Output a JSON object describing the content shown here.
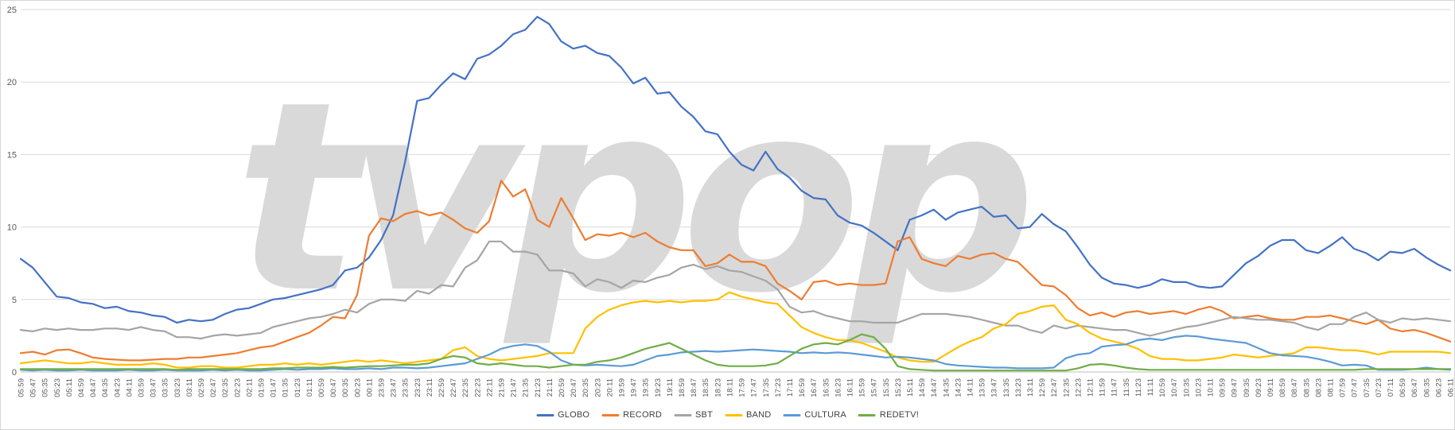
{
  "watermark": "tvpop",
  "colors": {
    "globo": "#4472C4",
    "record": "#ED7D31",
    "sbt": "#A5A5A5",
    "band": "#FFC000",
    "cultura": "#5B9BD5",
    "redetv": "#70AD47",
    "gridline": "#D9D9D9",
    "axis_line": "#BFBFBF",
    "tick_text": "#595959",
    "watermark_fill": "#D9D9D9"
  },
  "chart_data": {
    "type": "line",
    "title": "",
    "xlabel": "",
    "ylabel": "",
    "ylim": [
      0,
      25
    ],
    "y_ticks": [
      0,
      5,
      10,
      15,
      20,
      25
    ],
    "grid": "horizontal",
    "legend_position": "bottom",
    "x_interval_minutes": 12,
    "categories": [
      "05:59",
      "05:47",
      "05:35",
      "05:23",
      "05:11",
      "04:59",
      "04:47",
      "04:35",
      "04:23",
      "04:11",
      "03:59",
      "03:47",
      "03:35",
      "03:23",
      "03:11",
      "02:59",
      "02:47",
      "02:35",
      "02:23",
      "02:11",
      "01:59",
      "01:47",
      "01:35",
      "01:23",
      "01:11",
      "00:59",
      "00:47",
      "00:35",
      "00:23",
      "00:11",
      "23:59",
      "23:47",
      "23:35",
      "23:23",
      "23:11",
      "22:59",
      "22:47",
      "22:35",
      "22:23",
      "22:11",
      "21:59",
      "21:47",
      "21:35",
      "21:23",
      "21:11",
      "20:59",
      "20:47",
      "20:35",
      "20:23",
      "20:11",
      "19:59",
      "19:47",
      "19:35",
      "19:23",
      "19:11",
      "18:59",
      "18:47",
      "18:35",
      "18:23",
      "18:11",
      "17:59",
      "17:47",
      "17:35",
      "17:23",
      "17:11",
      "16:59",
      "16:47",
      "16:35",
      "16:23",
      "16:11",
      "15:59",
      "15:47",
      "15:35",
      "15:23",
      "15:11",
      "14:59",
      "14:47",
      "14:35",
      "14:23",
      "14:11",
      "13:59",
      "13:47",
      "13:35",
      "13:23",
      "13:11",
      "12:59",
      "12:47",
      "12:35",
      "12:23",
      "12:11",
      "11:59",
      "11:47",
      "11:35",
      "11:23",
      "11:11",
      "10:59",
      "10:47",
      "10:35",
      "10:23",
      "10:11",
      "09:59",
      "09:47",
      "09:35",
      "09:23",
      "09:11",
      "08:59",
      "08:47",
      "08:35",
      "08:23",
      "08:11",
      "07:59",
      "07:47",
      "07:35",
      "07:23",
      "07:11",
      "06:59",
      "06:47",
      "06:35",
      "06:23",
      "06:11"
    ],
    "series": [
      {
        "name": "GLOBO",
        "color": "#4472C4",
        "values": [
          7.8,
          7.2,
          6.2,
          5.2,
          5.1,
          4.8,
          4.7,
          4.4,
          4.5,
          4.2,
          4.1,
          3.9,
          3.8,
          3.4,
          3.6,
          3.5,
          3.6,
          4.0,
          4.3,
          4.4,
          4.7,
          5.0,
          5.1,
          5.3,
          5.5,
          5.7,
          6.0,
          7.0,
          7.2,
          7.9,
          9.1,
          10.8,
          14.5,
          18.7,
          18.9,
          19.8,
          20.6,
          20.2,
          21.6,
          21.9,
          22.5,
          23.3,
          23.6,
          24.5,
          24.0,
          22.8,
          22.3,
          22.5,
          22.0,
          21.8,
          21.0,
          19.9,
          20.3,
          19.2,
          19.3,
          18.3,
          17.6,
          16.6,
          16.4,
          15.2,
          14.3,
          13.9,
          15.2,
          14.0,
          13.4,
          12.5,
          12.0,
          11.9,
          10.8,
          10.3,
          10.1,
          9.6,
          9.0,
          8.4,
          10.5,
          10.8,
          11.2,
          10.5,
          11.0,
          11.2,
          11.4,
          10.7,
          10.8,
          9.9,
          10.0,
          10.9,
          10.2,
          9.7,
          8.6,
          7.4,
          6.5,
          6.1,
          6.0,
          5.8,
          6.0,
          6.4,
          6.2,
          6.2,
          5.9,
          5.8,
          5.9,
          6.7,
          7.5,
          8.0,
          8.7,
          9.1,
          9.1,
          8.4,
          8.2,
          8.7,
          9.3,
          8.5,
          8.2,
          7.7,
          8.3,
          8.2,
          8.5,
          7.9,
          7.4,
          7.0
        ]
      },
      {
        "name": "RECORD",
        "color": "#ED7D31",
        "values": [
          1.3,
          1.4,
          1.2,
          1.5,
          1.55,
          1.3,
          1.0,
          0.9,
          0.85,
          0.8,
          0.8,
          0.85,
          0.9,
          0.9,
          1.0,
          1.0,
          1.1,
          1.2,
          1.3,
          1.5,
          1.7,
          1.8,
          2.1,
          2.4,
          2.7,
          3.2,
          3.8,
          3.7,
          5.3,
          9.4,
          10.6,
          10.4,
          10.9,
          11.1,
          10.8,
          11.0,
          10.5,
          9.9,
          9.6,
          10.4,
          13.2,
          12.1,
          12.6,
          10.5,
          10.0,
          12.0,
          10.6,
          9.1,
          9.5,
          9.4,
          9.6,
          9.3,
          9.6,
          9.0,
          8.6,
          8.4,
          8.4,
          7.3,
          7.5,
          8.1,
          7.6,
          7.6,
          7.3,
          6.1,
          5.6,
          5.0,
          6.2,
          6.3,
          6.0,
          6.1,
          6.0,
          6.0,
          6.1,
          9.0,
          9.3,
          7.8,
          7.5,
          7.3,
          8.0,
          7.8,
          8.1,
          8.2,
          7.8,
          7.6,
          6.8,
          6.0,
          5.9,
          5.3,
          4.4,
          3.9,
          4.1,
          3.8,
          4.1,
          4.2,
          4.0,
          4.1,
          4.2,
          4.0,
          4.3,
          4.5,
          4.2,
          3.7,
          3.8,
          3.9,
          3.7,
          3.6,
          3.6,
          3.8,
          3.8,
          3.9,
          3.7,
          3.5,
          3.3,
          3.6,
          3.0,
          2.8,
          2.9,
          2.7,
          2.4,
          2.1
        ]
      },
      {
        "name": "SBT",
        "color": "#A5A5A5",
        "values": [
          2.9,
          2.8,
          3.0,
          2.9,
          3.0,
          2.9,
          2.9,
          3.0,
          3.0,
          2.9,
          3.1,
          2.9,
          2.8,
          2.4,
          2.4,
          2.3,
          2.5,
          2.6,
          2.5,
          2.6,
          2.7,
          3.1,
          3.3,
          3.5,
          3.7,
          3.8,
          4.0,
          4.3,
          4.1,
          4.7,
          5.0,
          5.0,
          4.9,
          5.6,
          5.4,
          6.0,
          5.9,
          7.2,
          7.7,
          9.0,
          9.0,
          8.3,
          8.3,
          8.1,
          7.0,
          7.0,
          6.8,
          5.9,
          6.4,
          6.2,
          5.8,
          6.3,
          6.2,
          6.5,
          6.7,
          7.2,
          7.4,
          7.1,
          7.3,
          7.0,
          6.9,
          6.6,
          6.3,
          5.7,
          4.5,
          4.1,
          4.2,
          3.9,
          3.7,
          3.5,
          3.5,
          3.4,
          3.4,
          3.4,
          3.7,
          4.0,
          4.0,
          4.0,
          3.9,
          3.8,
          3.6,
          3.4,
          3.2,
          3.2,
          2.9,
          2.7,
          3.2,
          3.0,
          3.2,
          3.1,
          3.0,
          2.9,
          2.9,
          2.7,
          2.5,
          2.7,
          2.9,
          3.1,
          3.2,
          3.4,
          3.6,
          3.8,
          3.7,
          3.6,
          3.6,
          3.5,
          3.4,
          3.1,
          2.9,
          3.3,
          3.3,
          3.8,
          4.1,
          3.6,
          3.4,
          3.7,
          3.6,
          3.7,
          3.6,
          3.5
        ]
      },
      {
        "name": "BAND",
        "color": "#FFC000",
        "values": [
          0.6,
          0.7,
          0.8,
          0.7,
          0.6,
          0.6,
          0.7,
          0.6,
          0.5,
          0.5,
          0.5,
          0.6,
          0.5,
          0.3,
          0.3,
          0.4,
          0.4,
          0.3,
          0.3,
          0.4,
          0.5,
          0.5,
          0.6,
          0.5,
          0.6,
          0.5,
          0.6,
          0.7,
          0.8,
          0.7,
          0.8,
          0.7,
          0.6,
          0.7,
          0.8,
          0.9,
          1.5,
          1.7,
          1.1,
          0.9,
          0.8,
          0.9,
          1.0,
          1.1,
          1.3,
          1.3,
          1.3,
          3.0,
          3.8,
          4.3,
          4.6,
          4.8,
          4.9,
          4.8,
          4.9,
          4.8,
          4.9,
          4.9,
          5.0,
          5.5,
          5.2,
          5.0,
          4.8,
          4.7,
          3.9,
          3.1,
          2.7,
          2.4,
          2.2,
          2.2,
          2.0,
          1.7,
          1.4,
          1.0,
          0.8,
          0.7,
          0.7,
          1.2,
          1.7,
          2.1,
          2.4,
          3.0,
          3.3,
          4.0,
          4.2,
          4.5,
          4.6,
          3.6,
          3.3,
          2.7,
          2.3,
          2.1,
          1.9,
          1.6,
          1.1,
          0.9,
          0.9,
          0.8,
          0.8,
          0.9,
          1.0,
          1.2,
          1.1,
          1.0,
          1.1,
          1.2,
          1.3,
          1.7,
          1.7,
          1.6,
          1.5,
          1.5,
          1.4,
          1.2,
          1.4,
          1.4,
          1.4,
          1.4,
          1.4,
          1.3
        ]
      },
      {
        "name": "CULTURA",
        "color": "#5B9BD5",
        "values": [
          0.15,
          0.1,
          0.15,
          0.1,
          0.1,
          0.15,
          0.1,
          0.1,
          0.1,
          0.15,
          0.1,
          0.1,
          0.15,
          0.1,
          0.1,
          0.1,
          0.15,
          0.1,
          0.15,
          0.1,
          0.1,
          0.15,
          0.2,
          0.15,
          0.2,
          0.2,
          0.25,
          0.2,
          0.2,
          0.25,
          0.2,
          0.3,
          0.3,
          0.25,
          0.3,
          0.4,
          0.5,
          0.6,
          0.9,
          1.2,
          1.6,
          1.8,
          1.9,
          1.8,
          1.4,
          0.8,
          0.5,
          0.45,
          0.5,
          0.45,
          0.4,
          0.5,
          0.8,
          1.1,
          1.2,
          1.35,
          1.4,
          1.45,
          1.4,
          1.45,
          1.5,
          1.55,
          1.5,
          1.45,
          1.4,
          1.3,
          1.35,
          1.3,
          1.35,
          1.3,
          1.2,
          1.1,
          1.0,
          1.05,
          1.0,
          0.9,
          0.8,
          0.55,
          0.45,
          0.4,
          0.35,
          0.3,
          0.3,
          0.25,
          0.25,
          0.25,
          0.3,
          0.95,
          1.2,
          1.3,
          1.75,
          1.85,
          1.9,
          2.2,
          2.3,
          2.2,
          2.4,
          2.5,
          2.45,
          2.3,
          2.2,
          2.1,
          2.0,
          1.65,
          1.3,
          1.15,
          1.1,
          1.05,
          0.9,
          0.7,
          0.45,
          0.5,
          0.45,
          0.15,
          0.15,
          0.15,
          0.2,
          0.3,
          0.2,
          0.15
        ]
      },
      {
        "name": "REDETV!",
        "color": "#70AD47",
        "values": [
          0.2,
          0.2,
          0.2,
          0.2,
          0.2,
          0.2,
          0.2,
          0.2,
          0.2,
          0.2,
          0.2,
          0.2,
          0.2,
          0.15,
          0.2,
          0.2,
          0.2,
          0.2,
          0.2,
          0.2,
          0.2,
          0.25,
          0.25,
          0.3,
          0.3,
          0.3,
          0.35,
          0.3,
          0.35,
          0.4,
          0.4,
          0.45,
          0.5,
          0.5,
          0.6,
          0.9,
          1.1,
          1.0,
          0.6,
          0.5,
          0.6,
          0.5,
          0.4,
          0.4,
          0.3,
          0.4,
          0.5,
          0.5,
          0.7,
          0.8,
          1.0,
          1.3,
          1.6,
          1.8,
          2.0,
          1.6,
          1.2,
          0.8,
          0.5,
          0.4,
          0.4,
          0.4,
          0.45,
          0.6,
          1.1,
          1.6,
          1.9,
          2.0,
          1.9,
          2.2,
          2.6,
          2.4,
          1.6,
          0.4,
          0.2,
          0.15,
          0.1,
          0.1,
          0.1,
          0.1,
          0.1,
          0.1,
          0.1,
          0.1,
          0.1,
          0.1,
          0.1,
          0.1,
          0.25,
          0.5,
          0.55,
          0.45,
          0.3,
          0.2,
          0.15,
          0.15,
          0.15,
          0.15,
          0.15,
          0.15,
          0.15,
          0.15,
          0.15,
          0.15,
          0.15,
          0.15,
          0.15,
          0.15,
          0.15,
          0.15,
          0.15,
          0.15,
          0.2,
          0.2,
          0.2,
          0.2,
          0.2,
          0.2,
          0.2,
          0.2
        ]
      }
    ]
  }
}
